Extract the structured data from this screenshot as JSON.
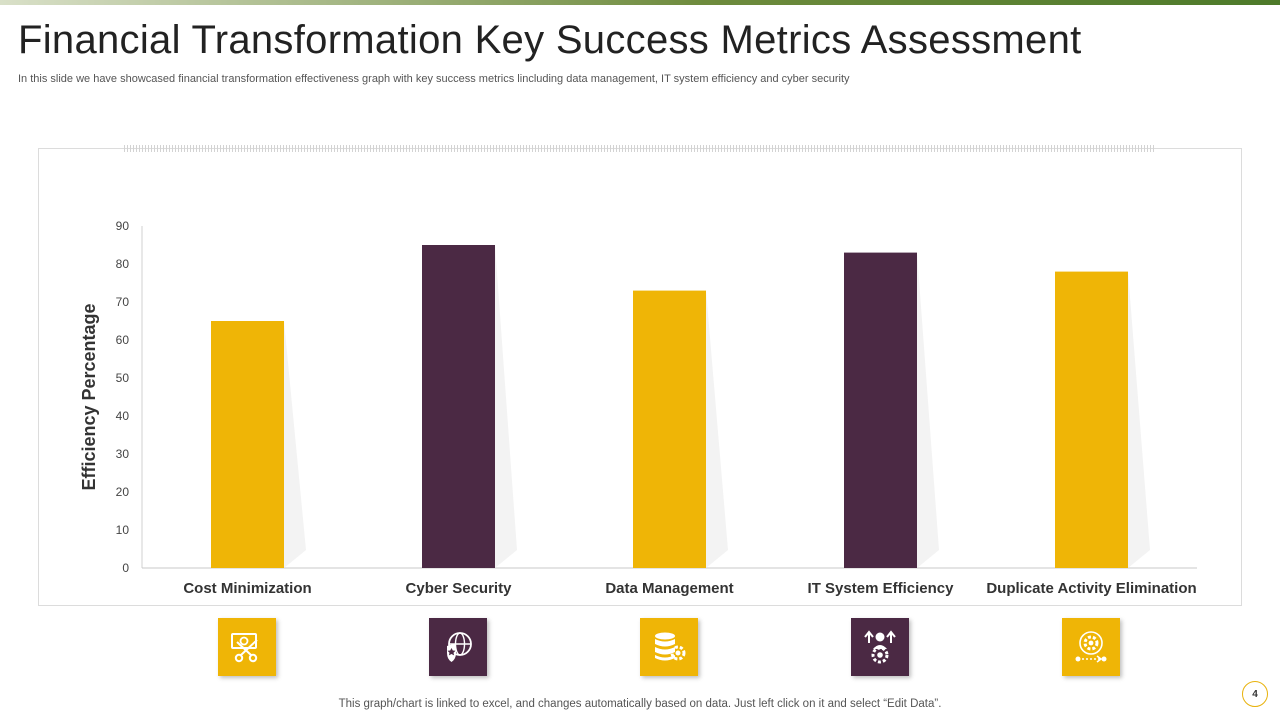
{
  "slide": {
    "title": "Financial Transformation  Key Success Metrics Assessment",
    "subtitle": "In this slide we have showcased financial transformation effectiveness graph  with  key success metrics lincluding data management, IT system efficiency and cyber security",
    "footnote": "This graph/chart is linked to excel,  and changes automatically based on data. Just left click on it and select “Edit Data”.",
    "page_number": "4"
  },
  "colors": {
    "gold": "#efb506",
    "plum": "#4b2944",
    "accent_line": "#6e8b3d"
  },
  "chart_data": {
    "type": "bar",
    "title": "",
    "xlabel": "",
    "ylabel": "Efficiency Percentage",
    "categories": [
      "Cost Minimization",
      "Cyber Security",
      "Data Management",
      "IT System Efficiency",
      "Duplicate Activity Elimination"
    ],
    "values": [
      65,
      85,
      73,
      83,
      78
    ],
    "bar_colors": [
      "#efb506",
      "#4b2944",
      "#efb506",
      "#4b2944",
      "#efb506"
    ],
    "ylim": [
      0,
      90
    ],
    "yticks": [
      0,
      10,
      20,
      30,
      40,
      50,
      60,
      70,
      80,
      90
    ],
    "grid": false,
    "legend": "none"
  },
  "icons": [
    {
      "name": "money-scissors-icon",
      "style": "gold"
    },
    {
      "name": "globe-shield-icon",
      "style": "plum"
    },
    {
      "name": "database-gear-icon",
      "style": "gold"
    },
    {
      "name": "person-gear-arrows-icon",
      "style": "plum"
    },
    {
      "name": "gear-cycle-icon",
      "style": "gold"
    }
  ]
}
